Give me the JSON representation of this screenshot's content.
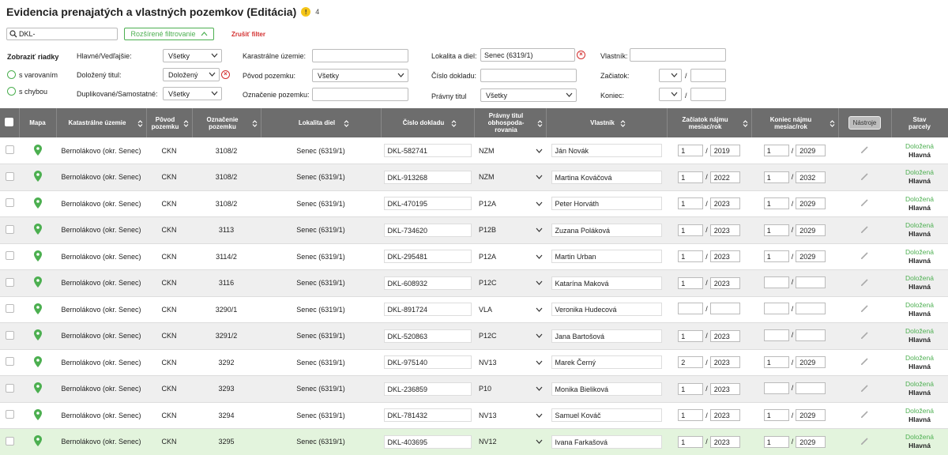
{
  "header": {
    "title": "Evidencia prenajatých a vlastných pozemkov (Editácia)",
    "warning_count": "4"
  },
  "search": {
    "value": "DKL-"
  },
  "filter_buttons": {
    "advanced": "Rozšírené filtrovanie",
    "cancel": "Zrušiť filter"
  },
  "filters": {
    "show_rows_label": "Zobraziť riadky",
    "with_warning": "s varovaním",
    "with_error": "s chybou",
    "main_label": "Hlavné/Vedľajšie:",
    "main_value": "Všetky",
    "proven_label": "Doložený titul:",
    "proven_value": "Doložený",
    "dup_label": "Duplikované/Samostatné:",
    "dup_value": "Všetky",
    "cadastral_label": "Karastrálne územie:",
    "origin_label": "Pôvod pozemku:",
    "origin_value": "Všetky",
    "designation_label": "Označenie pozemku:",
    "locality_label": "Lokalita a diel:",
    "locality_value": "Senec (6319/1)",
    "doc_label": "Číslo dokladu:",
    "legal_label": "Právny titul",
    "legal_value": "Všetky",
    "owner_label": "Vlastník:",
    "start_label": "Začiatok:",
    "end_label": "Koniec:",
    "slash": "/"
  },
  "columns": {
    "map": "Mapa",
    "cadastral": "Katastrálne územie",
    "origin_1": "Pôvod",
    "origin_2": "pozemku",
    "designation_1": "Označenie",
    "designation_2": "pozemku",
    "locality": "Lokalita diel",
    "doc": "Číslo dokladu",
    "legal_1": "Právny titul",
    "legal_2": "obhospoda-",
    "legal_3": "rovania",
    "owner": "Vlastník",
    "start_1": "Začiatok nájmu",
    "start_2": "mesiac/rok",
    "end_1": "Koniec nájmu",
    "end_2": "mesiac/rok",
    "tools": "Nástroje",
    "status_1": "Stav",
    "status_2": "parcely"
  },
  "rows": [
    {
      "cadastral": "Bernolákovo (okr. Senec)",
      "origin": "CKN",
      "designation": "3108/2",
      "locality": "Senec (6319/1)",
      "doc": "DKL-582741",
      "legal": "NZM",
      "owner": "Ján Novák",
      "start_m": "1",
      "start_y": "2019",
      "end_m": "1",
      "end_y": "2029",
      "status": "Doložená",
      "main": "Hlavná"
    },
    {
      "cadastral": "Bernolákovo (okr. Senec)",
      "origin": "CKN",
      "designation": "3108/2",
      "locality": "Senec (6319/1)",
      "doc": "DKL-913268",
      "legal": "NZM",
      "owner": "Martina Kováčová",
      "start_m": "1",
      "start_y": "2022",
      "end_m": "1",
      "end_y": "2032",
      "status": "Doložená",
      "main": "Hlavná"
    },
    {
      "cadastral": "Bernolákovo (okr. Senec)",
      "origin": "CKN",
      "designation": "3108/2",
      "locality": "Senec (6319/1)",
      "doc": "DKL-470195",
      "legal": "P12A",
      "owner": "Peter Horváth",
      "start_m": "1",
      "start_y": "2023",
      "end_m": "1",
      "end_y": "2029",
      "status": "Doložená",
      "main": "Hlavná"
    },
    {
      "cadastral": "Bernolákovo (okr. Senec)",
      "origin": "CKN",
      "designation": "3113",
      "locality": "Senec (6319/1)",
      "doc": "DKL-734620",
      "legal": "P12B",
      "owner": "Zuzana Poláková",
      "start_m": "1",
      "start_y": "2023",
      "end_m": "1",
      "end_y": "2029",
      "status": "Doložená",
      "main": "Hlavná"
    },
    {
      "cadastral": "Bernolákovo (okr. Senec)",
      "origin": "CKN",
      "designation": "3114/2",
      "locality": "Senec (6319/1)",
      "doc": "DKL-295481",
      "legal": "P12A",
      "owner": "Martin Urban",
      "start_m": "1",
      "start_y": "2023",
      "end_m": "1",
      "end_y": "2029",
      "status": "Doložená",
      "main": "Hlavná"
    },
    {
      "cadastral": "Bernolákovo (okr. Senec)",
      "origin": "CKN",
      "designation": "3116",
      "locality": "Senec (6319/1)",
      "doc": "DKL-608932",
      "legal": "P12C",
      "owner": "Katarína Maková",
      "start_m": "1",
      "start_y": "2023",
      "end_m": "",
      "end_y": "",
      "status": "Doložená",
      "main": "Hlavná"
    },
    {
      "cadastral": "Bernolákovo (okr. Senec)",
      "origin": "CKN",
      "designation": "3290/1",
      "locality": "Senec (6319/1)",
      "doc": "DKL-891724",
      "legal": "VLA",
      "owner": "Veronika Hudecová",
      "start_m": "",
      "start_y": "",
      "end_m": "",
      "end_y": "",
      "status": "Doložená",
      "main": "Hlavná"
    },
    {
      "cadastral": "Bernolákovo (okr. Senec)",
      "origin": "CKN",
      "designation": "3291/2",
      "locality": "Senec (6319/1)",
      "doc": "DKL-520863",
      "legal": "P12C",
      "owner": "Jana Bartošová",
      "start_m": "1",
      "start_y": "2023",
      "end_m": "",
      "end_y": "",
      "status": "Doložená",
      "main": "Hlavná"
    },
    {
      "cadastral": "Bernolákovo (okr. Senec)",
      "origin": "CKN",
      "designation": "3292",
      "locality": "Senec (6319/1)",
      "doc": "DKL-975140",
      "legal": "NV13",
      "owner": "Marek Černý",
      "start_m": "2",
      "start_y": "2023",
      "end_m": "1",
      "end_y": "2029",
      "status": "Doložená",
      "main": "Hlavná"
    },
    {
      "cadastral": "Bernolákovo (okr. Senec)",
      "origin": "CKN",
      "designation": "3293",
      "locality": "Senec (6319/1)",
      "doc": "DKL-236859",
      "legal": "P10",
      "owner": "Monika Bieliková",
      "start_m": "1",
      "start_y": "2023",
      "end_m": "",
      "end_y": "",
      "status": "Doložená",
      "main": "Hlavná"
    },
    {
      "cadastral": "Bernolákovo (okr. Senec)",
      "origin": "CKN",
      "designation": "3294",
      "locality": "Senec (6319/1)",
      "doc": "DKL-781432",
      "legal": "NV13",
      "owner": "Samuel Kováč",
      "start_m": "1",
      "start_y": "2023",
      "end_m": "1",
      "end_y": "2029",
      "status": "Doložená",
      "main": "Hlavná"
    },
    {
      "cadastral": "Bernolákovo (okr. Senec)",
      "origin": "CKN",
      "designation": "3295",
      "locality": "Senec (6319/1)",
      "doc": "DKL-403695",
      "legal": "NV12",
      "owner": "Ivana Farkašová",
      "start_m": "1",
      "start_y": "2023",
      "end_m": "1",
      "end_y": "2029",
      "status": "Doložená",
      "main": "Hlavná"
    }
  ],
  "colors": {
    "accent": "#4caf50",
    "danger": "#d32f2f",
    "header_bg": "#6d6d6d",
    "highlight_row": "#e3f4dd"
  },
  "icons": {
    "map": "map-pin-icon",
    "edit": "pencil-icon",
    "sort": "sort-arrows-icon",
    "search": "search-icon"
  }
}
